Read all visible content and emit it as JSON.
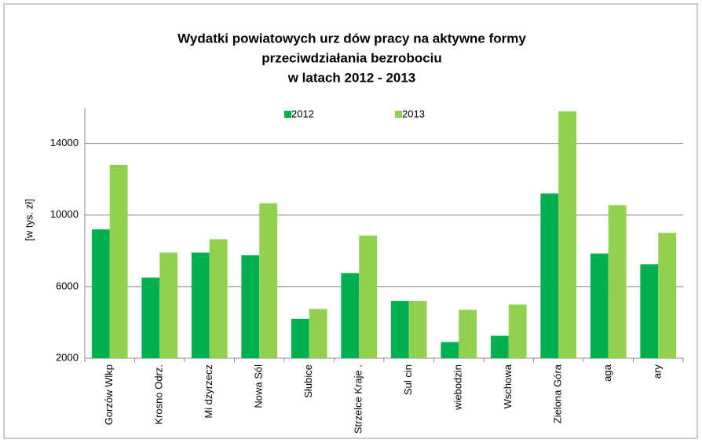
{
  "chart_data": {
    "type": "bar",
    "title": [
      "Wydatki powiatowych urz  dów pracy na aktywne formy",
      "przeciwdziałania bezrobociu",
      "w latach 2012 - 2013"
    ],
    "y_label": "[w tys. zł]",
    "categories": [
      "Gorzów Wlkp",
      "Krosno Odrz.",
      "Mi dzyrzecz",
      "Nowa Sól",
      "Słubice",
      "Strzelce Kraje .",
      "Sul cin",
      "wiebodzin",
      "Wschowa",
      "Zielona Góra",
      "aga",
      "ary"
    ],
    "series": [
      {
        "name": "2012",
        "color": "#00b050",
        "values": [
          9200,
          6500,
          7900,
          7750,
          4200,
          6750,
          5200,
          2900,
          3250,
          11200,
          7850,
          7250
        ]
      },
      {
        "name": "2013",
        "color": "#92d050",
        "values": [
          12800,
          7900,
          8650,
          10650,
          4750,
          8850,
          5200,
          4700,
          5000,
          15800,
          10550,
          9000
        ]
      }
    ],
    "ylim": [
      2000,
      16000
    ],
    "yticks": [
      2000,
      6000,
      10000,
      14000
    ],
    "grid": true,
    "legend": "top"
  }
}
